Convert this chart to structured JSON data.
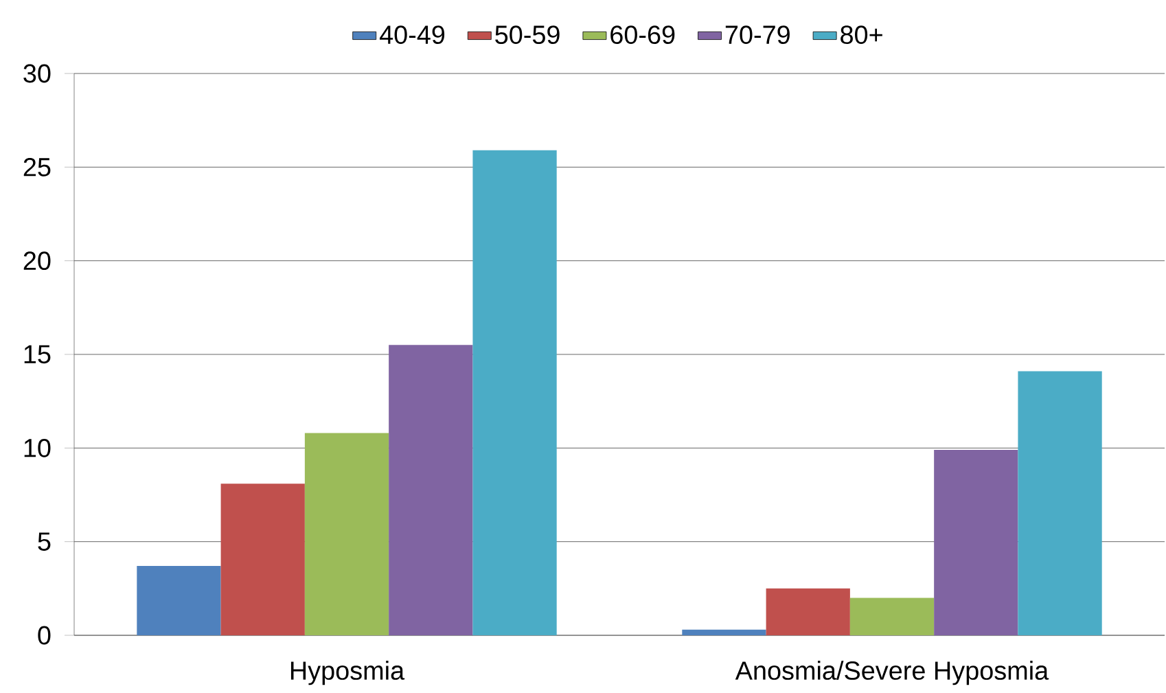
{
  "chart_data": {
    "type": "bar",
    "categories": [
      "Hyposmia",
      "Anosmia/Severe Hyposmia"
    ],
    "series": [
      {
        "name": "40-49",
        "color": "#4f81bd",
        "values": [
          3.7,
          0.3
        ]
      },
      {
        "name": "50-59",
        "color": "#c0504d",
        "values": [
          8.1,
          2.5
        ]
      },
      {
        "name": "60-69",
        "color": "#9bbb59",
        "values": [
          10.8,
          2.0
        ]
      },
      {
        "name": "70-79",
        "color": "#8064a2",
        "values": [
          15.5,
          9.9
        ]
      },
      {
        "name": "80+",
        "color": "#4bacc6",
        "values": [
          25.9,
          14.1
        ]
      }
    ],
    "ylim": [
      0,
      30
    ],
    "yticks": [
      0,
      5,
      10,
      15,
      20,
      25,
      30
    ],
    "grid": "y",
    "legend": "top"
  }
}
